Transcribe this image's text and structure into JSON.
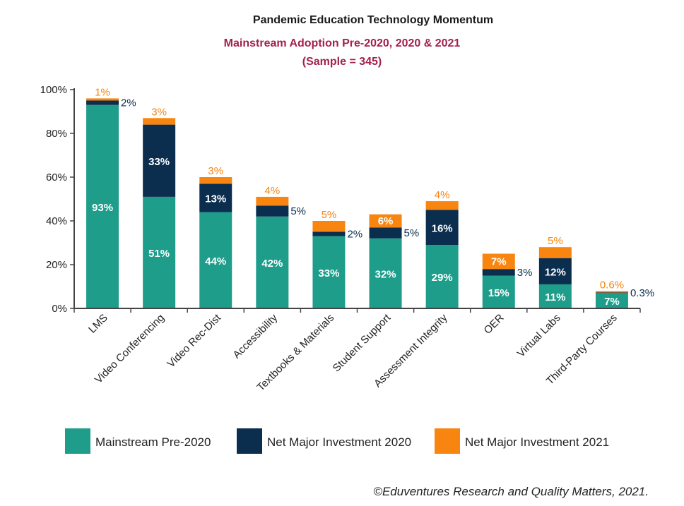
{
  "colors": {
    "pre2020": "#1e9d8b",
    "inv2020": "#0b2e4f",
    "inv2021": "#f7850f",
    "subtitle": "#a3204f",
    "axis": "#444444"
  },
  "chart_data": {
    "type": "bar",
    "stacked": true,
    "title": "Pandemic Education Technology Momentum",
    "subtitle": "Mainstream Adoption Pre-2020, 2020 & 2021",
    "subtitle2": "(Sample = 345)",
    "xlabel": "",
    "ylabel": "",
    "ylim": [
      0,
      100
    ],
    "yticks": [
      0,
      20,
      40,
      60,
      80,
      100
    ],
    "ytick_labels": [
      "0%",
      "20%",
      "40%",
      "60%",
      "80%",
      "100%"
    ],
    "categories": [
      "LMS",
      "Video Conferencing",
      "Video Rec-Dist",
      "Accessibility",
      "Textbooks & Materials",
      "Student Support",
      "Assessment Integrity",
      "OER",
      "Virtual Labs",
      "Third-Party Courses"
    ],
    "series": [
      {
        "name": "Mainstream Pre-2020",
        "values": [
          93,
          51,
          44,
          42,
          33,
          32,
          29,
          15,
          11,
          7
        ],
        "labels": [
          "93%",
          "51%",
          "44%",
          "42%",
          "33%",
          "32%",
          "29%",
          "15%",
          "11%",
          "7%"
        ]
      },
      {
        "name": "Net Major Investment 2020",
        "values": [
          2,
          33,
          13,
          5,
          2,
          5,
          16,
          3,
          12,
          0.3
        ],
        "labels": [
          "2%",
          "33%",
          "13%",
          "5%",
          "2%",
          "5%",
          "16%",
          "3%",
          "12%",
          "0.3%"
        ]
      },
      {
        "name": "Net Major Investment 2021",
        "values": [
          1,
          3,
          3,
          4,
          5,
          6,
          4,
          7,
          5,
          0.6
        ],
        "labels": [
          "1%",
          "3%",
          "3%",
          "4%",
          "5%",
          "6%",
          "4%",
          "7%",
          "5%",
          "0.6%"
        ]
      }
    ],
    "legend_position": "bottom"
  },
  "credit": "©Eduventures Research and Quality Matters, 2021."
}
